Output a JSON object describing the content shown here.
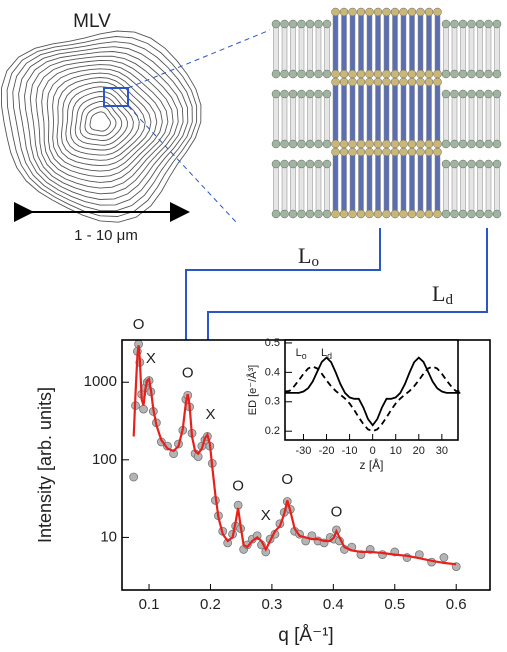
{
  "diagram": {
    "mlv_label": "MLV",
    "size_label": "1 - 10 μm",
    "lo_label": {
      "text": "L",
      "sub": "o"
    },
    "ld_label": {
      "text": "L",
      "sub": "d"
    }
  },
  "chart_data": [
    {
      "type": "scatter",
      "xlabel": "q [Å⁻¹]",
      "ylabel": "Intensity [arb. units]",
      "x": [
        0.075,
        0.078,
        0.081,
        0.083,
        0.085,
        0.088,
        0.091,
        0.094,
        0.097,
        0.1,
        0.103,
        0.107,
        0.112,
        0.12,
        0.13,
        0.14,
        0.148,
        0.155,
        0.16,
        0.163,
        0.166,
        0.17,
        0.175,
        0.18,
        0.186,
        0.191,
        0.195,
        0.199,
        0.203,
        0.208,
        0.213,
        0.22,
        0.228,
        0.236,
        0.241,
        0.245,
        0.249,
        0.254,
        0.26,
        0.268,
        0.276,
        0.283,
        0.29,
        0.297,
        0.305,
        0.313,
        0.32,
        0.325,
        0.33,
        0.337,
        0.345,
        0.355,
        0.365,
        0.375,
        0.385,
        0.395,
        0.401,
        0.405,
        0.41,
        0.418,
        0.43,
        0.445,
        0.46,
        0.48,
        0.5,
        0.52,
        0.54,
        0.56,
        0.58,
        0.6
      ],
      "series": [
        {
          "style": "marker",
          "color": "#b4b4b4",
          "values": [
            60,
            500,
            2500,
            3100,
            1800,
            700,
            450,
            850,
            1000,
            1050,
            750,
            420,
            300,
            170,
            150,
            120,
            160,
            240,
            600,
            680,
            480,
            220,
            120,
            110,
            150,
            180,
            200,
            150,
            90,
            30,
            19,
            12,
            8.5,
            11,
            14,
            26,
            13,
            7,
            8,
            9.5,
            10.5,
            8,
            6.5,
            9.5,
            11,
            15,
            21,
            29,
            23,
            12,
            11,
            9,
            10.5,
            9,
            8.5,
            10,
            9.5,
            12.5,
            9,
            7,
            7.5,
            6,
            7,
            6,
            6.5,
            5.5,
            6,
            4.8,
            5.5,
            4.2
          ]
        },
        {
          "style": "line",
          "color": "#e8201c",
          "values": [
            200,
            700,
            2200,
            3000,
            2000,
            600,
            500,
            800,
            1050,
            1100,
            800,
            450,
            280,
            180,
            140,
            130,
            150,
            250,
            550,
            700,
            500,
            200,
            130,
            120,
            140,
            190,
            210,
            160,
            80,
            35,
            18,
            11,
            9,
            10,
            16,
            24,
            14,
            8,
            7.5,
            9,
            10,
            9,
            7,
            9,
            12,
            14,
            20,
            30,
            22,
            13,
            10.5,
            10,
            9.5,
            9.5,
            9,
            9,
            10,
            12,
            10,
            7.5,
            6.8,
            6.5,
            6.5,
            6.3,
            6,
            5.8,
            5.4,
            5,
            4.7,
            4.5
          ]
        }
      ],
      "annotations": [
        {
          "text": "O",
          "x": 0.083,
          "y": 5500
        },
        {
          "text": "X",
          "x": 0.103,
          "y": 2000
        },
        {
          "text": "O",
          "x": 0.163,
          "y": 1300
        },
        {
          "text": "X",
          "x": 0.2,
          "y": 380
        },
        {
          "text": "O",
          "x": 0.245,
          "y": 45
        },
        {
          "text": "X",
          "x": 0.29,
          "y": 19
        },
        {
          "text": "O",
          "x": 0.325,
          "y": 55
        },
        {
          "text": "O",
          "x": 0.405,
          "y": 21
        }
      ],
      "xlim": [
        0.056,
        0.655
      ],
      "xticks": [
        0.1,
        0.2,
        0.3,
        0.4,
        0.5,
        0.6
      ],
      "ylim": [
        2.1,
        3500
      ],
      "yticks": [
        10,
        100,
        1000
      ],
      "log_y": true
    },
    {
      "type": "line",
      "xlabel": "z [Å]",
      "ylabel": "ED [e⁻/Å³]",
      "x": [
        -38,
        -36,
        -34,
        -32,
        -30,
        -28,
        -26,
        -24,
        -22,
        -20,
        -18,
        -16,
        -14,
        -12,
        -10,
        -8,
        -6,
        -4,
        -2,
        0,
        2,
        4,
        6,
        8,
        10,
        12,
        14,
        16,
        18,
        20,
        22,
        24,
        26,
        28,
        30,
        32,
        34,
        36,
        38
      ],
      "series": [
        {
          "color": "#000000",
          "dash": false,
          "values": [
            0.33,
            0.33,
            0.33,
            0.33,
            0.335,
            0.346,
            0.369,
            0.403,
            0.436,
            0.45,
            0.435,
            0.4,
            0.36,
            0.33,
            0.315,
            0.31,
            0.31,
            0.28,
            0.241,
            0.22,
            0.241,
            0.28,
            0.31,
            0.31,
            0.315,
            0.33,
            0.36,
            0.4,
            0.435,
            0.45,
            0.436,
            0.403,
            0.369,
            0.346,
            0.335,
            0.33,
            0.33,
            0.33,
            0.33
          ]
        },
        {
          "color": "#000000",
          "dash": true,
          "values": [
            0.335,
            0.337,
            0.353,
            0.373,
            0.395,
            0.413,
            0.42,
            0.413,
            0.395,
            0.373,
            0.353,
            0.337,
            0.324,
            0.311,
            0.294,
            0.272,
            0.247,
            0.224,
            0.206,
            0.2,
            0.206,
            0.224,
            0.247,
            0.272,
            0.294,
            0.311,
            0.324,
            0.337,
            0.353,
            0.373,
            0.395,
            0.413,
            0.42,
            0.413,
            0.395,
            0.373,
            0.353,
            0.337,
            0.335
          ]
        }
      ],
      "annotations": [
        {
          "text": "L",
          "sub": "o",
          "x": -31,
          "y": 0.465
        },
        {
          "text": "L",
          "sub": "d",
          "x": -20,
          "y": 0.465
        }
      ],
      "xlim": [
        -38,
        37
      ],
      "xticks": [
        -30,
        -20,
        -10,
        0,
        10,
        20,
        30
      ],
      "ylim": [
        0.17,
        0.51
      ],
      "yticks": [
        0.2,
        0.3,
        0.4,
        0.5
      ]
    }
  ]
}
